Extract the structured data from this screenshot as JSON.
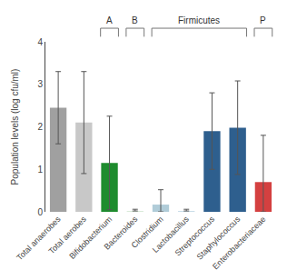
{
  "chart_data": {
    "type": "bar",
    "categories": [
      "Total anaerobes",
      "Total aerobes",
      "Bifidobacterium",
      "Bacteroides",
      "Clostridium",
      "Lactobacillus",
      "Streptococcus",
      "Staphylococcus",
      "Enterobacteriaceae"
    ],
    "values": [
      2.45,
      2.1,
      1.15,
      0.02,
      0.17,
      0.02,
      1.9,
      1.98,
      0.7
    ],
    "errors_up": [
      0.85,
      1.2,
      1.1,
      0.04,
      0.35,
      0.04,
      0.9,
      1.1,
      1.1
    ],
    "errors_down": [
      0.85,
      1.2,
      1.1,
      0.0,
      0.17,
      0.0,
      0.9,
      1.1,
      0.7
    ],
    "colors": [
      "#a0a0a0",
      "#c8c8c8",
      "#1e8c2e",
      "#d8ead8",
      "#b0ccd8",
      "#c8dce8",
      "#2e5f8e",
      "#2e5f8e",
      "#d44040"
    ],
    "ylabel": "Population levels (log cfu/ml)",
    "ylim": [
      0,
      4
    ],
    "yticks": [
      0,
      1,
      2,
      3,
      4
    ],
    "grid": false,
    "annotations": [
      {
        "text": "A",
        "from": "Bifidobacterium",
        "to": "Bifidobacterium"
      },
      {
        "text": "B",
        "from": "Bacteroides",
        "to": "Bacteroides"
      },
      {
        "text": "Firmicutes",
        "from": "Clostridium",
        "to": "Staphylococcus"
      },
      {
        "text": "P",
        "from": "Enterobacteriaceae",
        "to": "Enterobacteriaceae"
      }
    ]
  }
}
